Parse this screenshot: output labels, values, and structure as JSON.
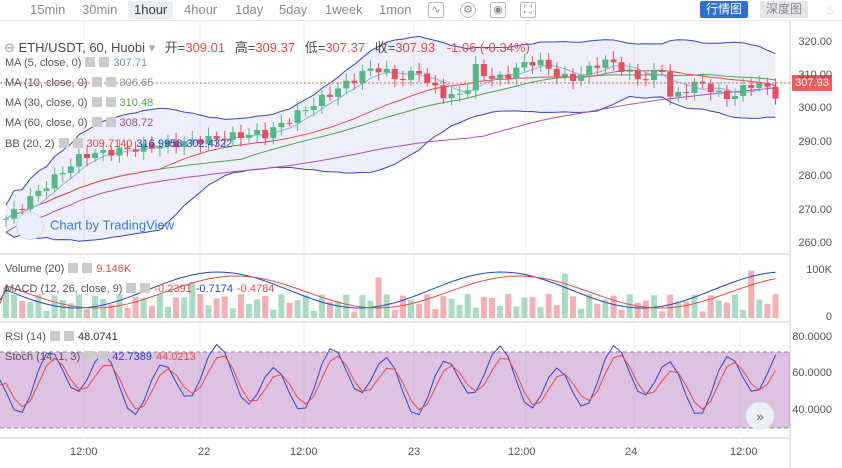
{
  "toolbar": {
    "timeframes": [
      "15min",
      "30min",
      "1hour",
      "4hour",
      "1day",
      "5day",
      "1week",
      "1mon"
    ],
    "active": "1hour",
    "tab_on": "行情图",
    "tab_off": "深度图"
  },
  "legend": {
    "symbol": "ETH/USDT, 60, Huobi",
    "open_label": "开=",
    "open": "309.01",
    "high_label": "高=",
    "high": "309.37",
    "low_label": "低=",
    "low": "307.37",
    "close_label": "收=",
    "close": "307.93",
    "change": "-1.06 (-0.34%)"
  },
  "indicators": {
    "ma5": {
      "name": "MA (5, close, 0)",
      "value": "307.71",
      "color": "#6b8fd6"
    },
    "ma10": {
      "name": "MA (10, close, 0)",
      "value": "306.65",
      "color": "#7f8fa6"
    },
    "ma30": {
      "name": "MA (30, close, 0)",
      "value": "310.48",
      "color": "#4aa84a"
    },
    "ma60": {
      "name": "MA (60, close, 0)",
      "value": "308.72",
      "color": "#a04aa0"
    },
    "bb": {
      "name": "BB (20, 2)",
      "v1": "309.7140",
      "v2": "316.9958",
      "v3": "302.4322"
    },
    "volume": {
      "name": "Volume (20)",
      "value": "9.146K"
    },
    "macd": {
      "name": "MACD (12, 26, close, 9)",
      "v1": "-0.2391",
      "v2": "-0.7174",
      "v3": "-0.4784"
    },
    "rsi": {
      "name": "RSI (14)",
      "value": "48.0741"
    },
    "stoch": {
      "name": "Stoch (14, 1, 3)",
      "v1": "42.7389",
      "v2": "44.0213"
    }
  },
  "watermark": "Chart by TradingView",
  "price_tag": "307.93",
  "price_axis": [
    "320.00",
    "310.00",
    "300.00",
    "290.00",
    "280.00",
    "270.00",
    "260.00"
  ],
  "vol_axis": [
    "100K",
    "0"
  ],
  "rsi_axis": [
    "80.0000",
    "60.0000",
    "40.0000"
  ],
  "time_axis": [
    "12:00",
    "22",
    "12:00",
    "23",
    "12:00",
    "24",
    "12:00"
  ],
  "colors": {
    "up": "#53b987",
    "down": "#eb4d5c",
    "accent": "#2d6fd6"
  }
}
